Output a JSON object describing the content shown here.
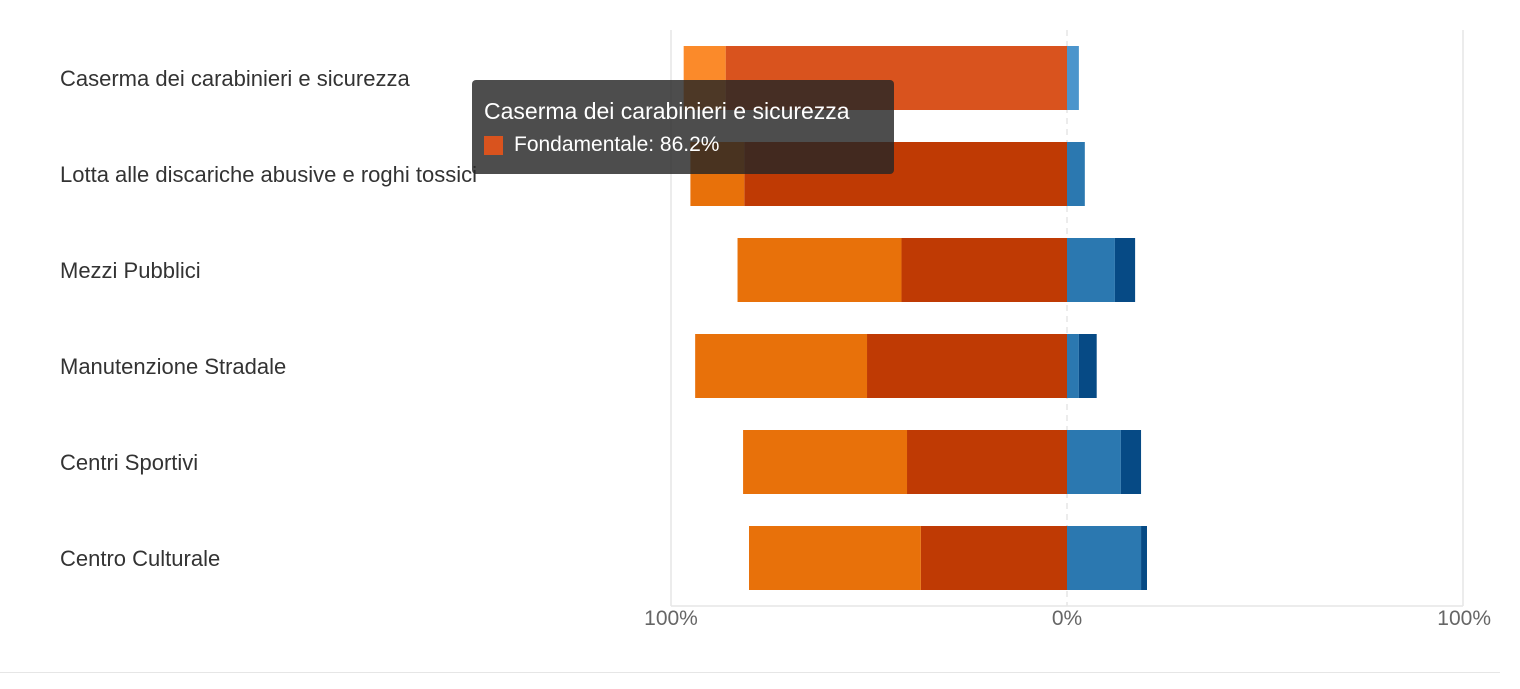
{
  "chart_data": {
    "type": "bar",
    "orientation": "horizontal",
    "stacking": "diverging",
    "categories": [
      "Caserma dei carabinieri e sicurezza",
      "Lotta alle discariche abusive e roghi tossici",
      "Mezzi Pubblici",
      "Manutenzione Stradale",
      "Centri Sportivi",
      "Centro Culturale"
    ],
    "series": [
      {
        "name": "Fondamentale",
        "side": "negative",
        "color": "#bf3a04",
        "values": [
          86.2,
          81.5,
          41.8,
          50.5,
          40.4,
          36.9
        ]
      },
      {
        "name": "",
        "side": "negative",
        "color": "#e8710a",
        "values": [
          10.6,
          13.6,
          41.4,
          43.4,
          41.4,
          43.4
        ]
      },
      {
        "name": "",
        "side": "positive",
        "color": "#2b78b0",
        "values": [
          3.0,
          4.5,
          12.1,
          3.0,
          13.6,
          18.7
        ]
      },
      {
        "name": "",
        "side": "positive",
        "color": "#064a85",
        "values": [
          0,
          0,
          5.1,
          4.5,
          5.1,
          1.5
        ]
      }
    ],
    "highlight": {
      "category": 0,
      "series": 0,
      "color": "#d9531e",
      "color2": "#fb8a2a",
      "color3": "#4c95cc"
    },
    "xlim": [
      -100,
      100
    ],
    "ticks": [
      {
        "value": -100,
        "label": "100%"
      },
      {
        "value": 0,
        "label": "0%"
      },
      {
        "value": 100,
        "label": "100%"
      }
    ],
    "grid": true,
    "title": "",
    "xlabel": "",
    "ylabel": ""
  },
  "tooltip": {
    "title": "Caserma dei carabinieri e sicurezza",
    "series_name": "Fondamentale",
    "value": "86.2%",
    "line": "Fondamentale: 86.2%",
    "swatch_color": "#d9531e"
  }
}
